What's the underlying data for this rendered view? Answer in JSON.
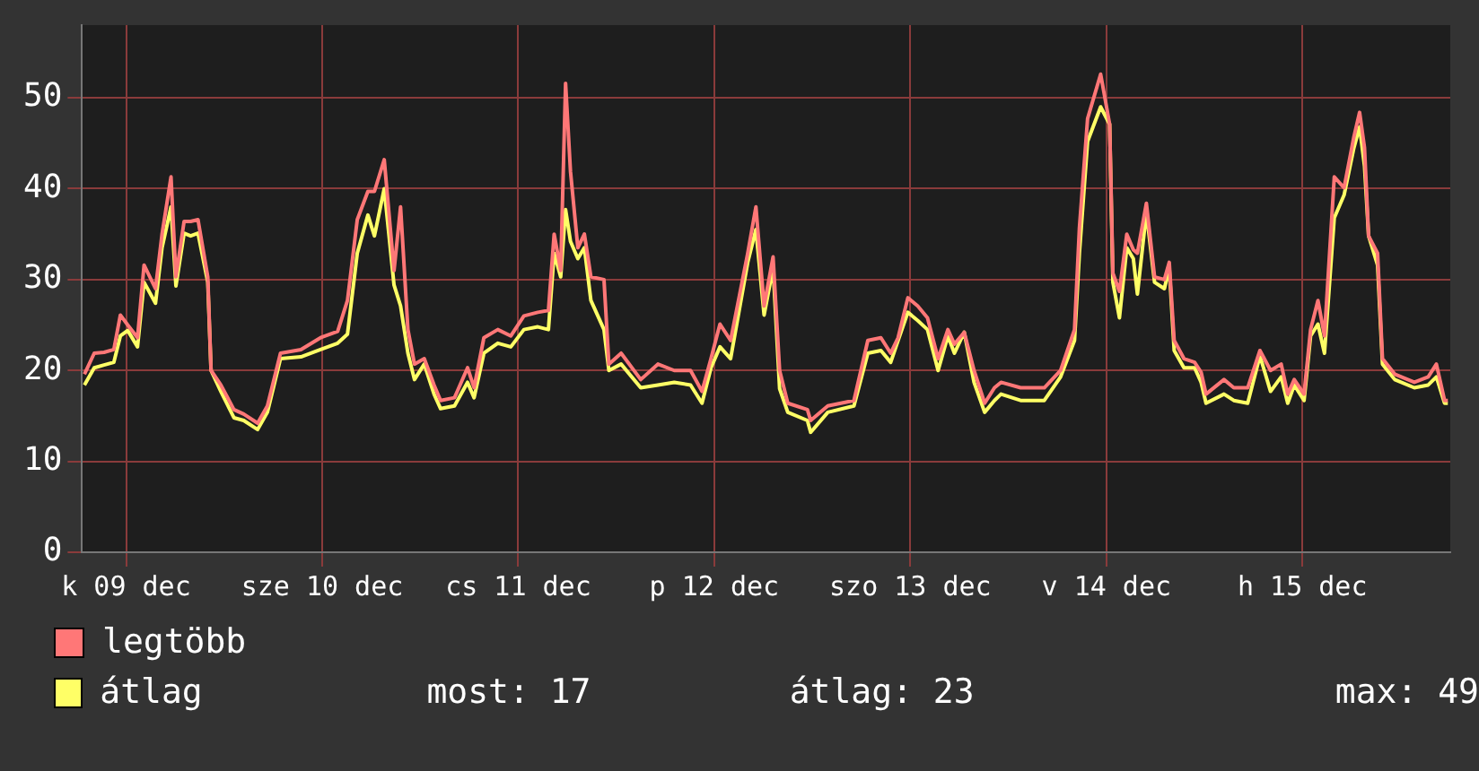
{
  "chart_data": {
    "type": "line",
    "xlim": [
      "--12-09T06:36",
      "--12-16T06:06"
    ],
    "ylim": [
      0,
      58
    ],
    "xticks": [
      {
        "value": "--12-09T12:00",
        "label": "k 09 dec"
      },
      {
        "value": "--12-10T12:00",
        "label": "sze 10 dec"
      },
      {
        "value": "--12-11T12:00",
        "label": "cs 11 dec"
      },
      {
        "value": "--12-12T12:00",
        "label": "p 12 dec"
      },
      {
        "value": "--12-13T12:00",
        "label": "szo 13 dec"
      },
      {
        "value": "--12-14T12:00",
        "label": "v 14 dec"
      },
      {
        "value": "--12-15T12:00",
        "label": "h 15 dec"
      }
    ],
    "yticks": [
      0,
      10,
      20,
      30,
      40,
      50
    ],
    "x": [
      "--12-09T06:54",
      "--12-09T08:06",
      "--12-09T09:18",
      "--12-09T10:30",
      "--12-09T11:18",
      "--12-09T12:12",
      "--12-09T13:24",
      "--12-09T14:12",
      "--12-09T15:36",
      "--12-09T16:24",
      "--12-09T17:30",
      "--12-09T18:06",
      "--12-09T19:06",
      "--12-09T19:54",
      "--12-09T20:48",
      "--12-09T22:00",
      "--12-09T22:24",
      "--12-09T23:36",
      "--12-10T01:12",
      "--12-10T02:24",
      "--12-10T04:06",
      "--12-10T05:18",
      "--12-10T06:54",
      "--12-10T09:24",
      "--12-10T11:48",
      "--12-10T13:54",
      "--12-10T15:06",
      "--12-10T16:18",
      "--12-10T17:36",
      "--12-10T18:24",
      "--12-10T19:36",
      "--12-10T20:48",
      "--12-10T21:36",
      "--12-10T22:30",
      "--12-10T23:18",
      "--12-11T00:30",
      "--12-11T01:42",
      "--12-11T02:30",
      "--12-11T04:12",
      "--12-11T05:48",
      "--12-11T06:36",
      "--12-11T07:48",
      "--12-11T09:30",
      "--12-11T11:06",
      "--12-11T12:42",
      "--12-11T14:24",
      "--12-11T15:42",
      "--12-11T16:24",
      "--12-11T17:12",
      "--12-11T17:48",
      "--12-11T18:24",
      "--12-11T19:18",
      "--12-11T20:06",
      "--12-11T20:54",
      "--12-11T22:30",
      "--12-11T23:06",
      "--12-12T00:36",
      "--12-12T03:00",
      "--12-12T05:06",
      "--12-12T07:06",
      "--12-12T09:06",
      "--12-12T10:30",
      "--12-12T11:36",
      "--12-12T12:42",
      "--12-12T14:00",
      "--12-12T16:06",
      "--12-12T17:06",
      "--12-12T18:06",
      "--12-12T19:12",
      "--12-12T20:00",
      "--12-12T21:00",
      "--12-12T23:24",
      "--12-12T23:48",
      "--12-13T01:54",
      "--12-13T05:06",
      "--12-13T06:48",
      "--12-13T08:24",
      "--12-13T09:36",
      "--12-13T10:30",
      "--12-13T11:42",
      "--12-13T12:54",
      "--12-13T14:06",
      "--12-13T15:24",
      "--12-13T16:36",
      "--12-13T17:24",
      "--12-13T18:36",
      "--12-13T19:48",
      "--12-13T21:06",
      "--12-13T22:18",
      "--12-13T23:06",
      "--12-14T01:30",
      "--12-14T04:24",
      "--12-14T06:24",
      "--12-14T08:06",
      "--12-14T08:42",
      "--12-14T09:42",
      "--12-14T11:18",
      "--12-14T12:24",
      "--12-14T12:48",
      "--12-14T13:36",
      "--12-14T14:30",
      "--12-14T15:18",
      "--12-14T15:48",
      "--12-14T16:54",
      "--12-14T17:54",
      "--12-14T19:06",
      "--12-14T19:42",
      "--12-14T20:18",
      "--12-14T21:30",
      "--12-14T22:48",
      "--12-14T23:36",
      "--12-15T00:12",
      "--12-15T02:24",
      "--12-15T03:36",
      "--12-15T05:18",
      "--12-15T06:48",
      "--12-15T08:06",
      "--12-15T09:24",
      "--12-15T10:12",
      "--12-15T11:00",
      "--12-15T12:12",
      "--12-15T13:00",
      "--12-15T13:54",
      "--12-15T14:42",
      "--12-15T15:54",
      "--12-15T17:06",
      "--12-15T18:18",
      "--12-15T19:00",
      "--12-15T19:36",
      "--12-15T20:06",
      "--12-15T21:12",
      "--12-15T21:48",
      "--12-15T23:18",
      "--12-16T01:42",
      "--12-16T03:24",
      "--12-16T04:24",
      "--12-16T05:24",
      "--12-16T05:48"
    ],
    "series": [
      {
        "name": "legtöbb",
        "color": "#ff7777",
        "values": [
          19.6,
          21.9,
          22.0,
          22.3,
          26.1,
          25.0,
          23.6,
          31.6,
          29.0,
          35.0,
          41.3,
          30.3,
          36.4,
          36.4,
          36.6,
          30.3,
          20.0,
          18.4,
          15.7,
          15.2,
          14.2,
          16.1,
          21.9,
          22.3,
          23.6,
          24.3,
          27.7,
          36.6,
          39.7,
          39.7,
          43.2,
          31.0,
          38.0,
          24.5,
          20.7,
          21.3,
          18.4,
          16.7,
          17.0,
          20.3,
          18.1,
          23.6,
          24.5,
          23.8,
          26.0,
          26.4,
          26.6,
          35.0,
          31.0,
          51.6,
          41.9,
          33.5,
          35.0,
          30.3,
          30.0,
          20.7,
          21.9,
          19.0,
          20.7,
          20.0,
          20.0,
          17.7,
          21.3,
          25.1,
          23.3,
          32.9,
          38.0,
          27.1,
          32.5,
          20.0,
          16.4,
          15.7,
          14.5,
          16.1,
          16.7,
          23.3,
          23.6,
          21.9,
          23.6,
          28.0,
          27.1,
          25.8,
          21.3,
          24.5,
          22.9,
          24.2,
          20.0,
          16.4,
          18.1,
          18.7,
          18.1,
          18.1,
          20.0,
          24.5,
          35.7,
          47.7,
          52.6,
          47.1,
          30.7,
          28.7,
          35.0,
          33.3,
          32.9,
          38.4,
          30.3,
          30.0,
          31.9,
          23.3,
          21.3,
          20.9,
          19.8,
          17.4,
          19.0,
          18.1,
          18.1,
          22.2,
          20.0,
          20.7,
          17.4,
          19.0,
          17.4,
          24.5,
          27.7,
          23.8,
          41.3,
          40.1,
          45.7,
          48.4,
          44.5,
          34.8,
          32.9,
          21.3,
          19.6,
          18.7,
          19.3,
          20.7,
          16.7,
          16.7
        ]
      },
      {
        "name": "átlag",
        "color": "#ffff66",
        "values": [
          18.4,
          20.3,
          20.6,
          20.9,
          23.8,
          24.4,
          22.6,
          29.7,
          27.4,
          33.5,
          38.0,
          29.3,
          35.1,
          34.8,
          35.1,
          29.7,
          20.0,
          17.7,
          14.8,
          14.5,
          13.5,
          15.4,
          21.3,
          21.5,
          22.3,
          23.0,
          24.0,
          32.9,
          37.1,
          34.8,
          40.0,
          29.4,
          27.1,
          21.9,
          19.0,
          20.7,
          17.4,
          15.8,
          16.1,
          18.7,
          17.0,
          21.9,
          23.0,
          22.6,
          24.5,
          24.8,
          24.5,
          32.9,
          30.3,
          37.7,
          34.2,
          32.3,
          33.5,
          27.7,
          24.5,
          20.0,
          20.7,
          18.1,
          18.4,
          18.7,
          18.4,
          16.4,
          20.3,
          22.6,
          21.3,
          31.9,
          35.5,
          26.1,
          31.3,
          18.0,
          15.4,
          14.5,
          13.2,
          15.4,
          16.1,
          21.9,
          22.2,
          20.9,
          23.3,
          26.4,
          25.5,
          24.5,
          20.0,
          23.8,
          21.9,
          24.2,
          18.7,
          15.4,
          16.7,
          17.4,
          16.7,
          16.7,
          19.3,
          23.3,
          32.9,
          45.2,
          49.0,
          47.1,
          29.7,
          25.8,
          33.5,
          32.3,
          28.4,
          37.4,
          29.7,
          29.0,
          31.3,
          22.2,
          20.3,
          20.3,
          18.7,
          16.4,
          17.4,
          16.7,
          16.4,
          21.6,
          17.7,
          19.3,
          16.4,
          18.4,
          16.7,
          23.8,
          25.1,
          21.9,
          36.8,
          39.3,
          44.5,
          46.8,
          42.5,
          34.8,
          31.6,
          20.7,
          19.0,
          18.1,
          18.4,
          19.3,
          16.4,
          16.4
        ]
      }
    ],
    "annotations": [
      "most: 17",
      "átlag: 23",
      "max: 49"
    ],
    "grid": true,
    "legend": "bottom left",
    "marker": "none",
    "line_style": "solid"
  }
}
